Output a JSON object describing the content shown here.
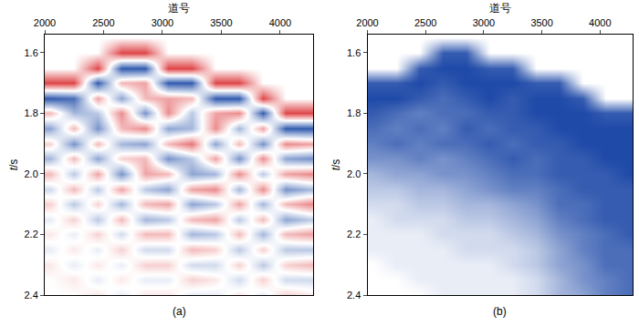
{
  "chart_data": [
    {
      "type": "heatmap",
      "panel_label": "(a)",
      "xlabel": "道号",
      "ylabel": "t/s",
      "xlim": [
        2000,
        4280
      ],
      "xticks": [
        2000,
        2500,
        3000,
        3500,
        4000
      ],
      "ylim": [
        2.4,
        1.54
      ],
      "yticks": [
        1.6,
        1.8,
        {
          "value": 2,
          "label": "2.0"
        },
        2.2,
        2.4
      ],
      "zlim": [
        -1,
        1
      ],
      "x": [
        2050,
        2250,
        2450,
        2650,
        2850,
        3050,
        3250,
        3450,
        3650,
        3850,
        4050,
        4250
      ],
      "y": [
        1.55,
        1.6,
        1.65,
        1.7,
        1.75,
        1.8,
        1.85,
        1.9,
        1.95,
        2.0,
        2.05,
        2.1,
        2.15,
        2.2,
        2.25,
        2.3,
        2.35,
        2.4
      ],
      "cells": [
        [
          0,
          0,
          0,
          0,
          0,
          0,
          0,
          0,
          0,
          0,
          0,
          0
        ],
        [
          0,
          0,
          0,
          0.8,
          0.8,
          0,
          0,
          0,
          0,
          0,
          0,
          0
        ],
        [
          0,
          0,
          0.8,
          -0.9,
          -0.9,
          0.8,
          0.8,
          0,
          0,
          0,
          0,
          0
        ],
        [
          0.8,
          0.8,
          -0.9,
          0.3,
          0.4,
          -0.9,
          -0.9,
          0.8,
          0.8,
          0,
          0,
          0
        ],
        [
          -0.9,
          -0.8,
          0.4,
          -0.5,
          0.3,
          0.4,
          0.3,
          -0.9,
          -0.9,
          0.8,
          0,
          0
        ],
        [
          0.3,
          -0.4,
          -0.3,
          0.5,
          -0.6,
          0.5,
          -0.3,
          0.4,
          0.5,
          -0.9,
          0.8,
          0.8
        ],
        [
          -0.5,
          0.3,
          -0.6,
          0.3,
          0.5,
          -0.5,
          -0.4,
          0.5,
          -0.4,
          0.4,
          -0.9,
          -0.9
        ],
        [
          0.2,
          -0.6,
          0.3,
          -0.4,
          -0.5,
          0.3,
          0.6,
          -0.5,
          0.3,
          -0.6,
          0.5,
          0.4
        ],
        [
          -0.4,
          0.3,
          -0.5,
          0.2,
          0.3,
          -0.6,
          -0.3,
          0.4,
          -0.6,
          0.5,
          -0.5,
          -0.6
        ],
        [
          0.3,
          -0.3,
          0.4,
          -0.6,
          0.4,
          0.3,
          -0.5,
          -0.4,
          0.5,
          -0.3,
          0.4,
          0.5
        ],
        [
          -0.2,
          0.3,
          -0.3,
          0.4,
          -0.3,
          -0.5,
          0.4,
          0.5,
          -0.4,
          0.5,
          -0.6,
          -0.4
        ],
        [
          0.2,
          -0.3,
          0.2,
          -0.4,
          0.3,
          0.4,
          -0.5,
          -0.3,
          0.4,
          -0.4,
          0.3,
          0.5
        ],
        [
          -0.1,
          0.2,
          -0.3,
          0.3,
          -0.4,
          -0.3,
          0.3,
          0.4,
          -0.3,
          0.3,
          -0.5,
          -0.3
        ],
        [
          0.1,
          -0.1,
          0.2,
          -0.2,
          0.3,
          0.3,
          -0.4,
          -0.3,
          0.3,
          -0.4,
          0.3,
          0.4
        ],
        [
          -0.1,
          0.1,
          -0.1,
          0.2,
          -0.2,
          -0.2,
          0.3,
          0.2,
          -0.3,
          0.2,
          -0.3,
          -0.3
        ],
        [
          0.1,
          -0.1,
          0.1,
          -0.1,
          0.2,
          0.2,
          -0.2,
          -0.2,
          0.2,
          -0.3,
          0.2,
          0.3
        ],
        [
          0,
          0.1,
          -0.1,
          0.1,
          -0.1,
          -0.1,
          0.2,
          0.1,
          -0.2,
          0.2,
          -0.2,
          -0.2
        ],
        [
          0,
          0,
          0.1,
          -0.1,
          0.1,
          0.1,
          -0.1,
          -0.1,
          0.1,
          -0.1,
          0.2,
          0.1
        ]
      ]
    },
    {
      "type": "heatmap",
      "panel_label": "(b)",
      "xlabel": "道号",
      "ylabel": "t/s",
      "xlim": [
        2000,
        4280
      ],
      "xticks": [
        2000,
        2500,
        3000,
        3500,
        4000
      ],
      "ylim": [
        2.4,
        1.54
      ],
      "yticks": [
        1.6,
        1.8,
        {
          "value": 2,
          "label": "2.0"
        },
        2.2,
        2.4
      ],
      "zlim": [
        0,
        1
      ],
      "x": [
        2050,
        2250,
        2450,
        2650,
        2850,
        3050,
        3250,
        3450,
        3650,
        3850,
        4050,
        4250
      ],
      "y": [
        1.55,
        1.6,
        1.65,
        1.7,
        1.75,
        1.8,
        1.85,
        1.9,
        1.95,
        2.0,
        2.05,
        2.1,
        2.15,
        2.2,
        2.25,
        2.3,
        2.35,
        2.4
      ],
      "cells": [
        [
          0,
          0,
          0,
          0,
          0,
          0,
          0,
          0,
          0,
          0,
          0,
          0
        ],
        [
          0,
          0,
          0,
          0.9,
          0.9,
          0,
          0,
          0,
          0,
          0,
          0,
          0
        ],
        [
          0,
          0,
          0.9,
          1,
          1,
          0.9,
          0.9,
          0,
          0,
          0,
          0,
          0
        ],
        [
          0.9,
          0.9,
          1,
          0.9,
          1,
          1,
          1,
          0.9,
          0.9,
          0,
          0,
          0
        ],
        [
          1,
          1,
          0.9,
          0.8,
          0.9,
          1,
          0.9,
          1,
          1,
          0.9,
          0,
          0
        ],
        [
          0.9,
          0.8,
          0.7,
          0.8,
          0.8,
          0.9,
          0.9,
          1,
          1,
          1,
          0.9,
          0.9
        ],
        [
          0.8,
          0.7,
          0.8,
          0.7,
          0.9,
          0.8,
          0.9,
          0.9,
          1,
          1,
          1,
          1
        ],
        [
          0.7,
          0.8,
          0.7,
          0.8,
          0.8,
          0.9,
          0.8,
          0.9,
          0.9,
          1,
          1,
          1
        ],
        [
          0.6,
          0.6,
          0.7,
          0.6,
          0.7,
          0.8,
          0.9,
          0.8,
          0.9,
          0.9,
          1,
          1
        ],
        [
          0.4,
          0.5,
          0.5,
          0.6,
          0.6,
          0.7,
          0.8,
          0.8,
          0.9,
          0.9,
          0.9,
          1
        ],
        [
          0.3,
          0.3,
          0.4,
          0.4,
          0.5,
          0.6,
          0.7,
          0.7,
          0.8,
          0.9,
          0.9,
          0.9
        ],
        [
          0.2,
          0.2,
          0.3,
          0.3,
          0.4,
          0.4,
          0.5,
          0.6,
          0.8,
          0.8,
          0.9,
          0.9
        ],
        [
          0.1,
          0.2,
          0.2,
          0.2,
          0.3,
          0.3,
          0.4,
          0.5,
          0.7,
          0.8,
          0.9,
          0.9
        ],
        [
          0.1,
          0.1,
          0.1,
          0.2,
          0.2,
          0.2,
          0.3,
          0.4,
          0.6,
          0.7,
          0.8,
          0.9
        ],
        [
          0.1,
          0.1,
          0.1,
          0.1,
          0.2,
          0.2,
          0.2,
          0.3,
          0.5,
          0.7,
          0.8,
          0.8
        ],
        [
          0,
          0.1,
          0.1,
          0.1,
          0.1,
          0.1,
          0.2,
          0.3,
          0.5,
          0.6,
          0.8,
          0.8
        ],
        [
          0,
          0,
          0.1,
          0.1,
          0.1,
          0.1,
          0.1,
          0.2,
          0.4,
          0.6,
          0.7,
          0.8
        ],
        [
          0,
          0,
          0,
          0.1,
          0.1,
          0.1,
          0.1,
          0.2,
          0.4,
          0.5,
          0.7,
          0.8
        ]
      ]
    }
  ]
}
